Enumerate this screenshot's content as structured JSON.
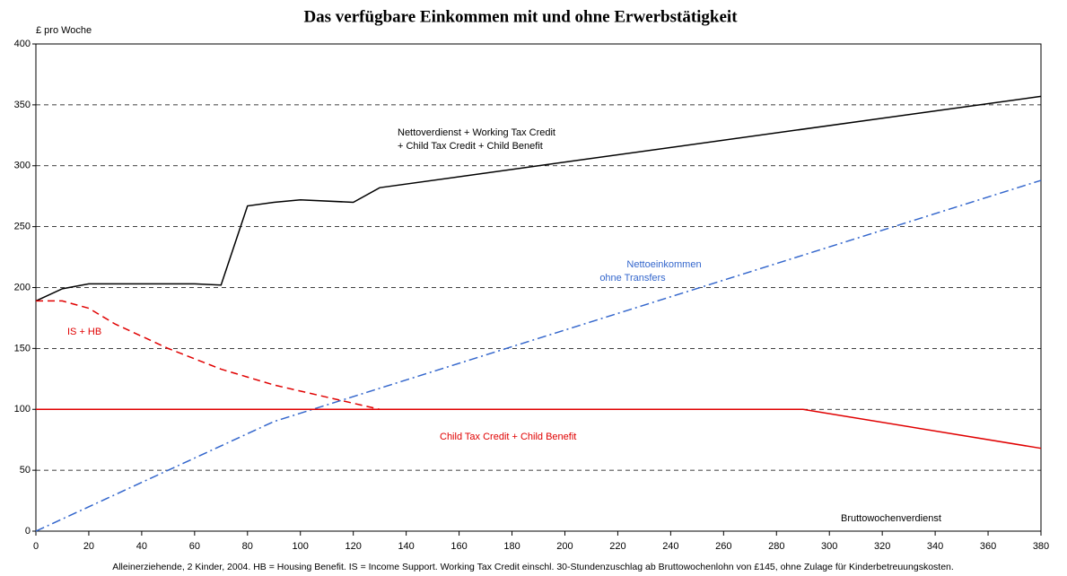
{
  "chart_data": {
    "type": "line",
    "title": "Das verfügbare Einkommen mit und ohne Erwerbstätigkeit",
    "ylabel": "£ pro Woche",
    "xlabel": "Bruttowochenverdienst",
    "footnote": "Alleinerziehende, 2 Kinder, 2004. HB = Housing Benefit. IS = Income Support. Working Tax Credit einschl. 30-Stundenzuschlag ab Bruttowochenlohn von £145, ohne Zulage für Kinderbetreuungskosten.",
    "xlim": [
      0,
      380
    ],
    "ylim": [
      0,
      400
    ],
    "xticks": [
      0,
      20,
      40,
      60,
      80,
      100,
      120,
      140,
      160,
      180,
      200,
      220,
      240,
      260,
      280,
      300,
      320,
      340,
      360,
      380
    ],
    "yticks": [
      0,
      50,
      100,
      150,
      200,
      250,
      300,
      350,
      400
    ],
    "grid": true,
    "series": [
      {
        "name": [
          "Nettoverdienst + Working Tax Credit",
          "+ Child Tax Credit + Child Benefit"
        ],
        "color": "#000000",
        "style": "solid",
        "x": [
          0,
          10,
          20,
          60,
          70,
          80,
          90,
          100,
          120,
          130,
          380
        ],
        "values": [
          189,
          199,
          203,
          203,
          202,
          267,
          270,
          272,
          270,
          282,
          357
        ]
      },
      {
        "name": [
          "Nettoeinkommen",
          "ohne Transfers"
        ],
        "color": "#3366cc",
        "style": "dashdot",
        "x": [
          0,
          90,
          380
        ],
        "values": [
          0,
          90,
          288
        ]
      },
      {
        "name": [
          "IS + HB"
        ],
        "color": "#e00000",
        "style": "dashed",
        "x": [
          0,
          10,
          20,
          30,
          50,
          70,
          90,
          110,
          130
        ],
        "values": [
          189,
          189,
          183,
          170,
          150,
          133,
          120,
          110,
          100
        ]
      },
      {
        "name": [
          "Child Tax Credit + Child Benefit"
        ],
        "color": "#e00000",
        "style": "solid",
        "x": [
          0,
          290,
          380
        ],
        "values": [
          100,
          100,
          68
        ]
      }
    ]
  }
}
